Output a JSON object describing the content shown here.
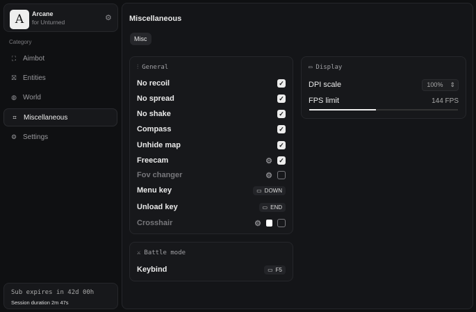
{
  "app": {
    "name": "Arcane",
    "subtitle": "for Unturned"
  },
  "sidebar": {
    "category_label": "Category",
    "items": [
      {
        "label": "Aimbot",
        "icon": "crosshair-icon"
      },
      {
        "label": "Entities",
        "icon": "entities-icon"
      },
      {
        "label": "World",
        "icon": "globe-icon"
      },
      {
        "label": "Miscellaneous",
        "icon": "grid-icon",
        "selected": true
      },
      {
        "label": "Settings",
        "icon": "gear-icon"
      }
    ]
  },
  "footer": {
    "sub": "Sub expires in 42d 00h",
    "session": "Session duration 2m 47s"
  },
  "main": {
    "title": "Miscellaneous",
    "tabs": [
      {
        "label": "Misc"
      }
    ]
  },
  "general": {
    "title": "General",
    "rows": [
      {
        "label": "No recoil",
        "checked": true
      },
      {
        "label": "No spread",
        "checked": true
      },
      {
        "label": "No shake",
        "checked": true
      },
      {
        "label": "Compass",
        "checked": true
      },
      {
        "label": "Unhide map",
        "checked": true
      },
      {
        "label": "Freecam",
        "checked": true
      },
      {
        "label": "Fov changer",
        "checked": false
      },
      {
        "label": "Menu key",
        "key": "DOWN"
      },
      {
        "label": "Unload key",
        "key": "END"
      },
      {
        "label": "Crosshair",
        "checked": false
      }
    ]
  },
  "display": {
    "title": "Display",
    "dpi_label": "DPI scale",
    "dpi_value": "100%",
    "fps_label": "FPS limit",
    "fps_value": "144 FPS",
    "fps_slider_fraction": 0.45
  },
  "battle": {
    "title": "Battle mode",
    "keybind_label": "Keybind",
    "keybind_value": "F5"
  },
  "colors": {
    "bg": "#0f1012",
    "card": "#17181b",
    "accent": "#ececec"
  }
}
